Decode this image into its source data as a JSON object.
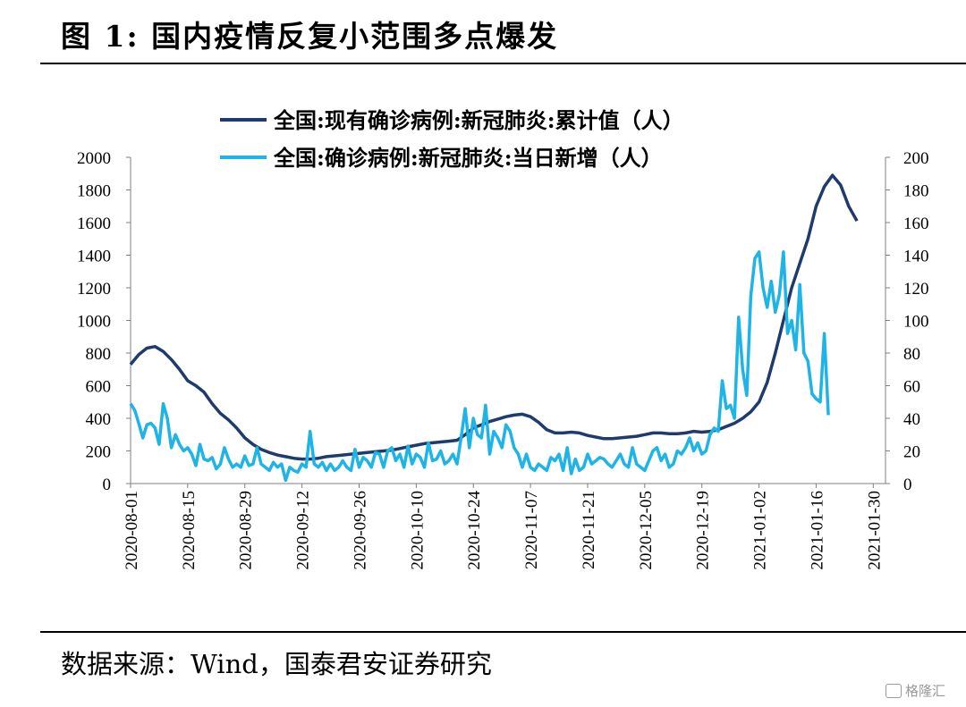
{
  "figure": {
    "title": "图 1:  国内疫情反复小范围多点爆发",
    "source": "数据来源：Wind，国泰君安证券研究",
    "watermark": "格隆汇"
  },
  "chart_data": {
    "type": "line",
    "left_axis": {
      "ylim": [
        0,
        2000
      ],
      "ticks": [
        0,
        200,
        400,
        600,
        800,
        1000,
        1200,
        1400,
        1600,
        1800,
        2000
      ]
    },
    "right_axis": {
      "ylim": [
        0,
        200
      ],
      "ticks": [
        0,
        20,
        40,
        60,
        80,
        100,
        120,
        140,
        160,
        180,
        200
      ]
    },
    "x_tick_labels": [
      "2020-08-01",
      "2020-08-15",
      "2020-08-29",
      "2020-09-12",
      "2020-09-26",
      "2020-10-10",
      "2020-10-24",
      "2020-11-07",
      "2020-11-21",
      "2020-12-05",
      "2020-12-19",
      "2021-01-02",
      "2021-01-16",
      "2021-01-30"
    ],
    "x_range_days": [
      0,
      185
    ],
    "colors": {
      "cumulative": "#1f3b6e",
      "daily": "#1fb4e6"
    },
    "series": [
      {
        "name": "全国:现有确诊病例:新冠肺炎:累计值（人）",
        "axis": "left",
        "points": [
          [
            0,
            730
          ],
          [
            2,
            790
          ],
          [
            4,
            830
          ],
          [
            6,
            840
          ],
          [
            8,
            810
          ],
          [
            10,
            760
          ],
          [
            12,
            700
          ],
          [
            14,
            630
          ],
          [
            16,
            600
          ],
          [
            18,
            560
          ],
          [
            20,
            490
          ],
          [
            22,
            430
          ],
          [
            24,
            390
          ],
          [
            26,
            340
          ],
          [
            28,
            280
          ],
          [
            30,
            240
          ],
          [
            32,
            210
          ],
          [
            34,
            190
          ],
          [
            36,
            175
          ],
          [
            38,
            165
          ],
          [
            40,
            155
          ],
          [
            42,
            150
          ],
          [
            44,
            150
          ],
          [
            46,
            155
          ],
          [
            48,
            165
          ],
          [
            50,
            170
          ],
          [
            52,
            175
          ],
          [
            54,
            180
          ],
          [
            56,
            185
          ],
          [
            58,
            190
          ],
          [
            60,
            195
          ],
          [
            62,
            200
          ],
          [
            64,
            205
          ],
          [
            66,
            215
          ],
          [
            68,
            225
          ],
          [
            70,
            235
          ],
          [
            72,
            245
          ],
          [
            74,
            250
          ],
          [
            76,
            255
          ],
          [
            78,
            260
          ],
          [
            80,
            265
          ],
          [
            82,
            300
          ],
          [
            84,
            340
          ],
          [
            86,
            360
          ],
          [
            88,
            380
          ],
          [
            90,
            395
          ],
          [
            92,
            410
          ],
          [
            94,
            420
          ],
          [
            96,
            425
          ],
          [
            98,
            410
          ],
          [
            100,
            375
          ],
          [
            102,
            330
          ],
          [
            104,
            310
          ],
          [
            106,
            310
          ],
          [
            108,
            315
          ],
          [
            110,
            310
          ],
          [
            112,
            295
          ],
          [
            114,
            285
          ],
          [
            116,
            275
          ],
          [
            118,
            275
          ],
          [
            120,
            280
          ],
          [
            122,
            285
          ],
          [
            124,
            290
          ],
          [
            126,
            300
          ],
          [
            128,
            310
          ],
          [
            130,
            310
          ],
          [
            132,
            305
          ],
          [
            134,
            305
          ],
          [
            136,
            310
          ],
          [
            138,
            320
          ],
          [
            140,
            315
          ],
          [
            142,
            320
          ],
          [
            144,
            330
          ],
          [
            146,
            350
          ],
          [
            148,
            370
          ],
          [
            150,
            400
          ],
          [
            152,
            440
          ],
          [
            154,
            500
          ],
          [
            156,
            620
          ],
          [
            158,
            800
          ],
          [
            160,
            1000
          ],
          [
            162,
            1200
          ],
          [
            164,
            1350
          ],
          [
            166,
            1500
          ],
          [
            168,
            1700
          ],
          [
            170,
            1820
          ],
          [
            172,
            1890
          ],
          [
            174,
            1830
          ],
          [
            176,
            1700
          ],
          [
            178,
            1610
          ]
        ]
      },
      {
        "name": "全国:确诊病例:新冠肺炎:当日新增（人）",
        "axis": "right",
        "points": [
          [
            0,
            49
          ],
          [
            1,
            45
          ],
          [
            2,
            37
          ],
          [
            3,
            28
          ],
          [
            4,
            36
          ],
          [
            5,
            37
          ],
          [
            6,
            34
          ],
          [
            7,
            24
          ],
          [
            8,
            49
          ],
          [
            9,
            40
          ],
          [
            10,
            22
          ],
          [
            11,
            30
          ],
          [
            12,
            24
          ],
          [
            13,
            20
          ],
          [
            14,
            22
          ],
          [
            15,
            18
          ],
          [
            16,
            11
          ],
          [
            17,
            24
          ],
          [
            18,
            15
          ],
          [
            19,
            14
          ],
          [
            20,
            16
          ],
          [
            21,
            9
          ],
          [
            22,
            12
          ],
          [
            23,
            22
          ],
          [
            24,
            15
          ],
          [
            25,
            10
          ],
          [
            26,
            12
          ],
          [
            27,
            10
          ],
          [
            28,
            17
          ],
          [
            29,
            11
          ],
          [
            30,
            12
          ],
          [
            31,
            22
          ],
          [
            32,
            12
          ],
          [
            33,
            10
          ],
          [
            34,
            8
          ],
          [
            35,
            13
          ],
          [
            36,
            10
          ],
          [
            37,
            12
          ],
          [
            38,
            2
          ],
          [
            39,
            10
          ],
          [
            40,
            8
          ],
          [
            41,
            7
          ],
          [
            42,
            12
          ],
          [
            43,
            10
          ],
          [
            44,
            32
          ],
          [
            45,
            12
          ],
          [
            46,
            10
          ],
          [
            47,
            13
          ],
          [
            48,
            8
          ],
          [
            49,
            12
          ],
          [
            50,
            8
          ],
          [
            51,
            10
          ],
          [
            52,
            14
          ],
          [
            53,
            10
          ],
          [
            54,
            8
          ],
          [
            55,
            21
          ],
          [
            56,
            10
          ],
          [
            57,
            16
          ],
          [
            58,
            14
          ],
          [
            59,
            10
          ],
          [
            60,
            19
          ],
          [
            61,
            18
          ],
          [
            62,
            10
          ],
          [
            63,
            20
          ],
          [
            64,
            22
          ],
          [
            65,
            14
          ],
          [
            66,
            18
          ],
          [
            67,
            10
          ],
          [
            68,
            23
          ],
          [
            69,
            12
          ],
          [
            70,
            18
          ],
          [
            71,
            16
          ],
          [
            72,
            10
          ],
          [
            73,
            25
          ],
          [
            74,
            14
          ],
          [
            75,
            15
          ],
          [
            76,
            20
          ],
          [
            77,
            12
          ],
          [
            78,
            14
          ],
          [
            79,
            18
          ],
          [
            80,
            12
          ],
          [
            81,
            28
          ],
          [
            82,
            46
          ],
          [
            83,
            22
          ],
          [
            84,
            40
          ],
          [
            85,
            30
          ],
          [
            86,
            28
          ],
          [
            87,
            48
          ],
          [
            88,
            18
          ],
          [
            89,
            32
          ],
          [
            90,
            28
          ],
          [
            91,
            22
          ],
          [
            92,
            36
          ],
          [
            93,
            32
          ],
          [
            94,
            22
          ],
          [
            95,
            18
          ],
          [
            96,
            10
          ],
          [
            97,
            18
          ],
          [
            98,
            10
          ],
          [
            99,
            8
          ],
          [
            100,
            12
          ],
          [
            101,
            10
          ],
          [
            102,
            8
          ],
          [
            103,
            16
          ],
          [
            104,
            14
          ],
          [
            105,
            18
          ],
          [
            106,
            8
          ],
          [
            107,
            22
          ],
          [
            108,
            6
          ],
          [
            109,
            15
          ],
          [
            110,
            8
          ],
          [
            111,
            10
          ],
          [
            112,
            18
          ],
          [
            113,
            12
          ],
          [
            114,
            14
          ],
          [
            115,
            16
          ],
          [
            116,
            15
          ],
          [
            117,
            12
          ],
          [
            118,
            10
          ],
          [
            119,
            14
          ],
          [
            120,
            18
          ],
          [
            121,
            12
          ],
          [
            122,
            10
          ],
          [
            123,
            22
          ],
          [
            124,
            12
          ],
          [
            125,
            10
          ],
          [
            126,
            8
          ],
          [
            127,
            14
          ],
          [
            128,
            20
          ],
          [
            129,
            22
          ],
          [
            130,
            14
          ],
          [
            131,
            18
          ],
          [
            132,
            10
          ],
          [
            133,
            12
          ],
          [
            134,
            20
          ],
          [
            135,
            18
          ],
          [
            136,
            22
          ],
          [
            137,
            28
          ],
          [
            138,
            20
          ],
          [
            139,
            25
          ],
          [
            140,
            18
          ],
          [
            141,
            20
          ],
          [
            142,
            30
          ],
          [
            143,
            34
          ],
          [
            144,
            32
          ],
          [
            145,
            63
          ],
          [
            146,
            46
          ],
          [
            147,
            48
          ],
          [
            148,
            40
          ],
          [
            149,
            102
          ],
          [
            150,
            70
          ],
          [
            151,
            54
          ],
          [
            152,
            115
          ],
          [
            153,
            138
          ],
          [
            154,
            142
          ],
          [
            155,
            120
          ],
          [
            156,
            108
          ],
          [
            157,
            124
          ],
          [
            158,
            105
          ],
          [
            159,
            116
          ],
          [
            160,
            142
          ],
          [
            161,
            92
          ],
          [
            162,
            100
          ],
          [
            163,
            82
          ],
          [
            164,
            122
          ],
          [
            165,
            80
          ],
          [
            166,
            75
          ],
          [
            167,
            55
          ],
          [
            168,
            52
          ],
          [
            169,
            50
          ],
          [
            170,
            92
          ],
          [
            171,
            42
          ]
        ]
      }
    ]
  }
}
